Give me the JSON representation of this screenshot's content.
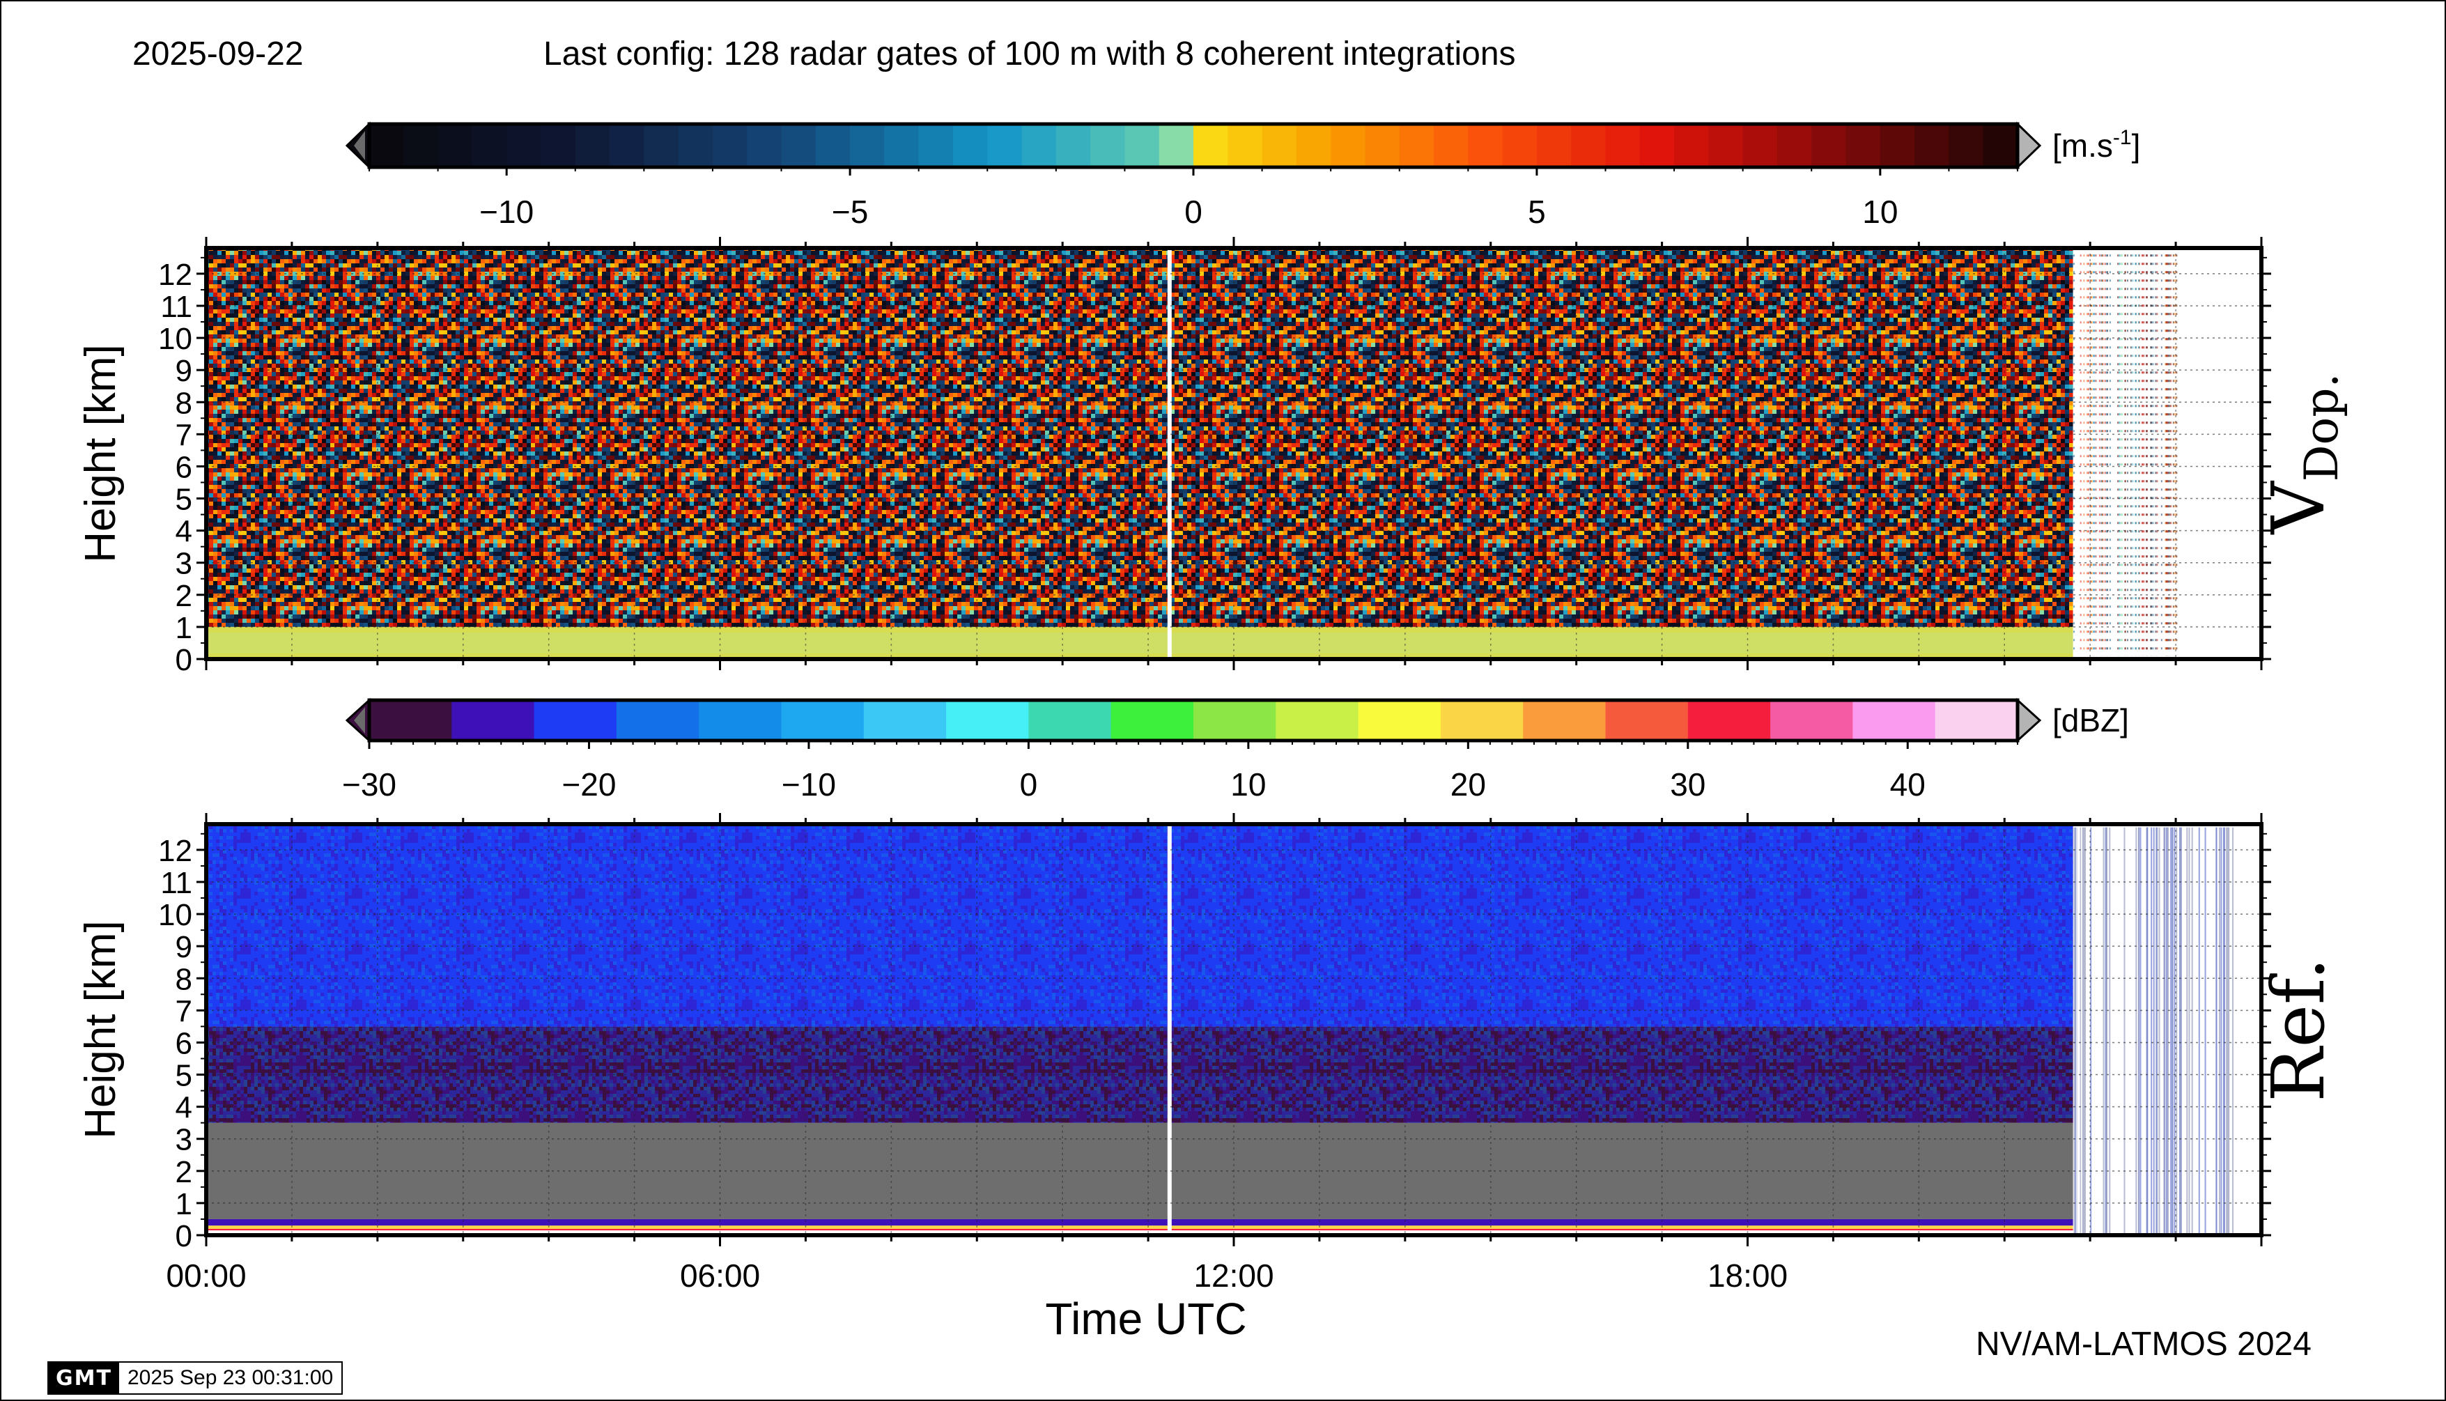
{
  "header": {
    "date": "2025-09-22",
    "config": "Last config: 128 radar gates of 100 m with 8 coherent integrations"
  },
  "footer": {
    "credit": "NV/AM-LATMOS 2024",
    "gmt_logo": "GMT",
    "gmt_timestamp": "2025 Sep 23 00:31:00"
  },
  "chart_data": [
    {
      "type": "heatmap",
      "panel_label": "V",
      "panel_label_sub": "Dop.",
      "ylabel": "Height [km]",
      "xlabel": "",
      "ylim": [
        0,
        12.8
      ],
      "xlim_hours": [
        0,
        24
      ],
      "yticks": [
        "0",
        "1",
        "2",
        "3",
        "4",
        "5",
        "6",
        "7",
        "8",
        "9",
        "10",
        "11",
        "12"
      ],
      "xticks": [],
      "grid": true,
      "data_end_hour": 21.8,
      "gap_hour": 11.25,
      "colorbar": {
        "unit": "[m.s",
        "unit_sup": "-1",
        "unit_end": "]",
        "range": [
          -12,
          12
        ],
        "tick_values": [
          -10,
          -5,
          0,
          5,
          10
        ],
        "tick_labels": [
          "−10",
          "−5",
          "0",
          "5",
          "10"
        ],
        "bins": 48
      },
      "layers": [
        {
          "from_km": 0.0,
          "to_km": 1.0,
          "description": "low-level band",
          "value_range": [
            0,
            1
          ]
        },
        {
          "from_km": 1.0,
          "to_km": 12.8,
          "description": "noise",
          "value_range": [
            -12,
            12
          ]
        }
      ]
    },
    {
      "type": "heatmap",
      "panel_label": "Ref.",
      "ylabel": "Height [km]",
      "xlabel": "Time UTC",
      "ylim": [
        0,
        12.8
      ],
      "xlim_hours": [
        0,
        24
      ],
      "yticks": [
        "0",
        "1",
        "2",
        "3",
        "4",
        "5",
        "6",
        "7",
        "8",
        "9",
        "10",
        "11",
        "12"
      ],
      "xticks": [
        "00:00",
        "06:00",
        "12:00",
        "18:00"
      ],
      "xtick_hours": [
        0,
        6,
        12,
        18
      ],
      "grid": true,
      "data_end_hour": 21.8,
      "gap_hour": 11.25,
      "colorbar": {
        "unit": "[dBZ]",
        "range": [
          -30,
          45
        ],
        "tick_values": [
          -30,
          -20,
          -10,
          0,
          10,
          20,
          30,
          40
        ],
        "tick_labels": [
          "−30",
          "−20",
          "−10",
          "0",
          "10",
          "20",
          "30",
          "40"
        ],
        "colors": [
          "#3b0f3f",
          "#3e10b8",
          "#1f3cf5",
          "#1470e8",
          "#128ce8",
          "#1ea8f0",
          "#3cc8f5",
          "#46eef5",
          "#3cd8b0",
          "#3cf03c",
          "#8ce646",
          "#c8f046",
          "#fafa3c",
          "#fad646",
          "#fa9b3c",
          "#f55a3c",
          "#f51e3c",
          "#f55aa5",
          "#fa9bf0",
          "#fad2f0"
        ]
      },
      "layers": [
        {
          "from_km": 0.15,
          "to_km": 0.2,
          "dbz": 30
        },
        {
          "from_km": 0.2,
          "to_km": 0.3,
          "dbz": 20
        },
        {
          "from_km": 0.3,
          "to_km": 0.5,
          "dbz": -25
        },
        {
          "from_km": 0.5,
          "to_km": 3.5,
          "dbz": null,
          "note": "no signal"
        },
        {
          "from_km": 3.5,
          "to_km": 6.5,
          "dbz": -28
        },
        {
          "from_km": 6.5,
          "to_km": 12.8,
          "dbz": -20
        }
      ]
    }
  ],
  "colors": {
    "no_signal": "#6e6e6e",
    "frame": "#000000",
    "grid": "#222222"
  }
}
